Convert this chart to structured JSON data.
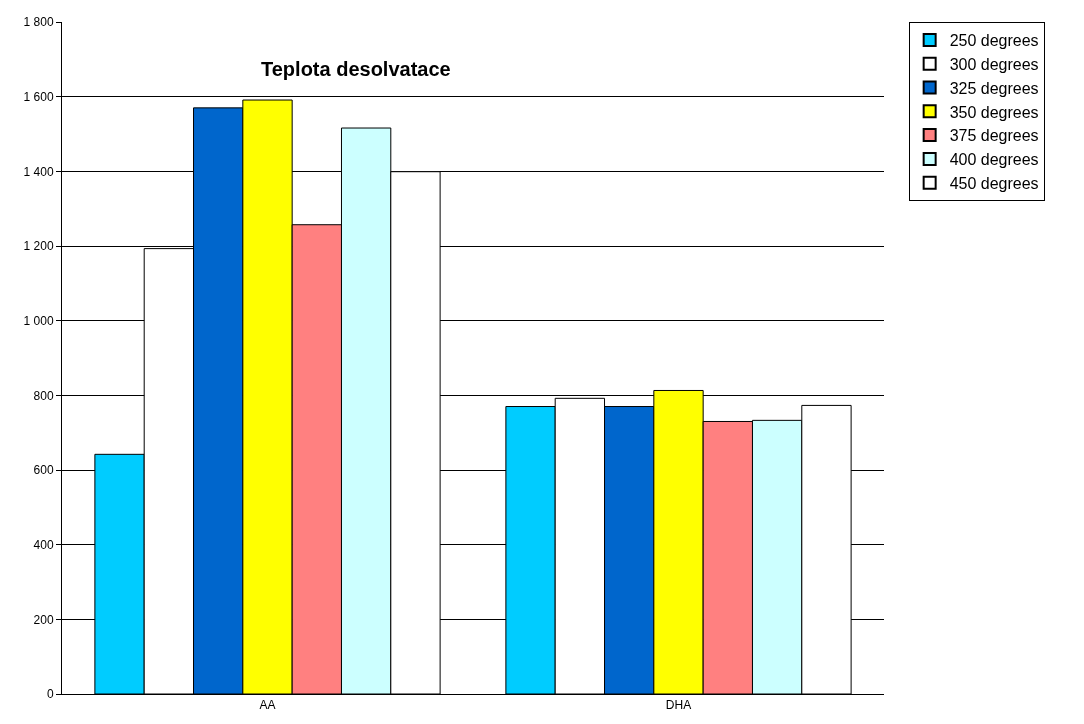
{
  "chart_data": {
    "type": "bar",
    "title": "Teplota desolvatace",
    "categories": [
      "AA",
      "DHA"
    ],
    "series": [
      {
        "name": "250 degrees",
        "color": "#00ccff",
        "values": [
          642,
          770
        ]
      },
      {
        "name": "300 degrees",
        "color": "#ffffff",
        "values": [
          1193,
          792
        ]
      },
      {
        "name": "325 degrees",
        "color": "#0066cc",
        "values": [
          1570,
          770
        ]
      },
      {
        "name": "350 degrees",
        "color": "#ffff00",
        "values": [
          1591,
          813
        ]
      },
      {
        "name": "375 degrees",
        "color": "#ff8080",
        "values": [
          1257,
          730
        ]
      },
      {
        "name": "400 degrees",
        "color": "#ccffff",
        "values": [
          1516,
          733
        ]
      },
      {
        "name": "450 degrees",
        "color": "#ffffff",
        "values": [
          1399,
          773
        ]
      }
    ],
    "ylim": [
      0,
      1800
    ],
    "yticks": [
      0,
      200,
      400,
      600,
      800,
      {
        "value": 1000,
        "label": "1 000"
      },
      {
        "value": 1200,
        "label": "1 200"
      },
      {
        "value": 1400,
        "label": "1 400"
      },
      {
        "value": 1600,
        "label": "1 600"
      },
      {
        "value": 1800,
        "label": "1 800"
      }
    ],
    "grid": "y",
    "legend": "right"
  }
}
